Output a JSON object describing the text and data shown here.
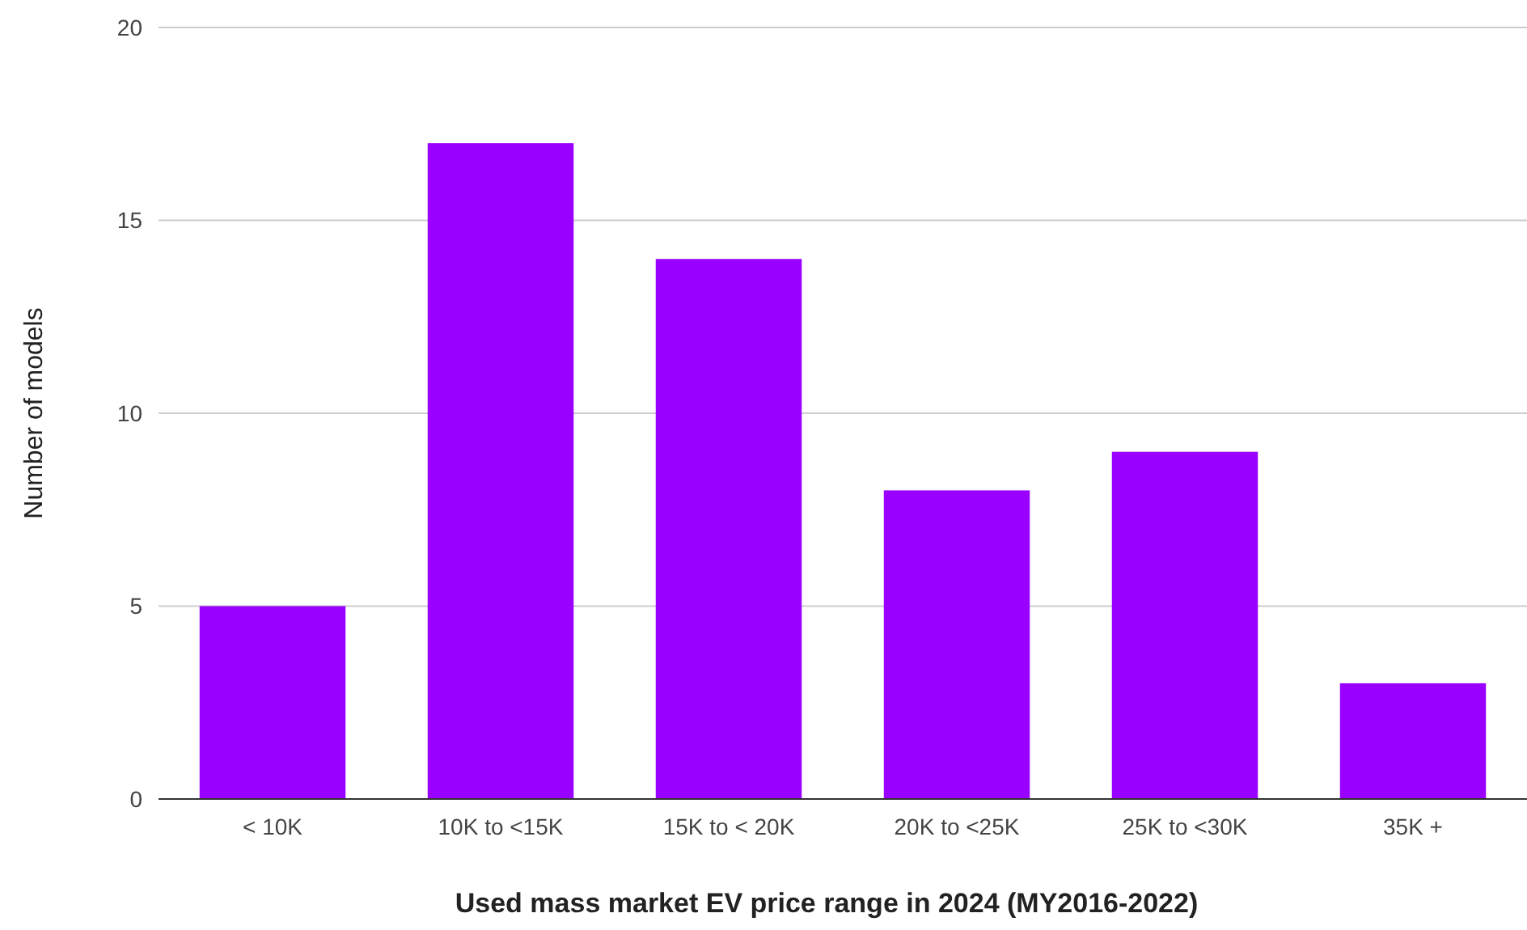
{
  "chart_data": {
    "type": "bar",
    "xlabel": "Used mass market EV price range in 2024 (MY2016-2022)",
    "ylabel": "Number of models",
    "categories": [
      "< 10K",
      "10K to <15K",
      "15K to < 20K",
      "20K to <25K",
      "25K to <30K",
      "35K +"
    ],
    "values": [
      5,
      17,
      14,
      8,
      9,
      3
    ],
    "color": "#9900ff",
    "ylim": [
      0,
      20
    ],
    "yticks": [
      0,
      5,
      10,
      15,
      20
    ],
    "grid": "y"
  }
}
